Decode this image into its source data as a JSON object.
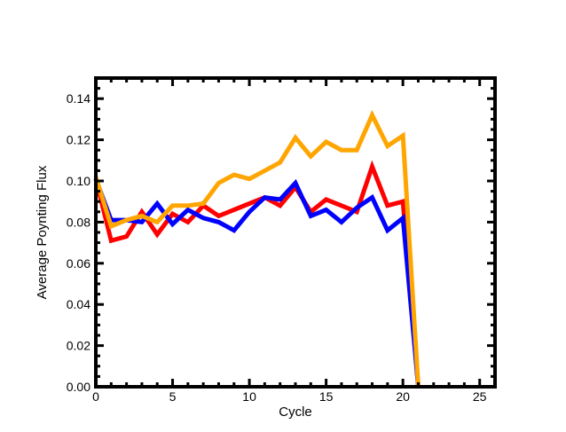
{
  "chart_data": {
    "type": "line",
    "xlabel": "Cycle",
    "ylabel": "Average Poynting Flux",
    "xlim": [
      0,
      26
    ],
    "ylim": [
      0,
      0.15
    ],
    "xticks": [
      0,
      5,
      10,
      15,
      20,
      25
    ],
    "xtick_labels": [
      "0",
      "5",
      "10",
      "15",
      "20",
      "25"
    ],
    "yticks": [
      0.0,
      0.02,
      0.04,
      0.06,
      0.08,
      0.1,
      0.12,
      0.14
    ],
    "ytick_labels": [
      "0.00",
      "0.02",
      "0.04",
      "0.06",
      "0.08",
      "0.10",
      "0.12",
      "0.14"
    ],
    "grid": false,
    "frame": "box",
    "series": [
      {
        "color": "#ff0000",
        "x": [
          0,
          1,
          2,
          3,
          4,
          5,
          6,
          7,
          8,
          9,
          10,
          11,
          12,
          13,
          14,
          15,
          16,
          17,
          18,
          19,
          20,
          21
        ],
        "values": [
          0.101,
          0.071,
          0.073,
          0.085,
          0.074,
          0.084,
          0.08,
          0.088,
          0.083,
          0.086,
          0.089,
          0.092,
          0.088,
          0.097,
          0.085,
          0.091,
          0.088,
          0.085,
          0.107,
          0.088,
          0.09,
          0.0
        ]
      },
      {
        "color": "#0000ff",
        "x": [
          0,
          1,
          2,
          3,
          4,
          5,
          6,
          7,
          8,
          9,
          10,
          11,
          12,
          13,
          14,
          15,
          16,
          17,
          18,
          19,
          20,
          21
        ],
        "values": [
          0.101,
          0.081,
          0.081,
          0.08,
          0.089,
          0.079,
          0.086,
          0.082,
          0.08,
          0.076,
          0.085,
          0.092,
          0.091,
          0.099,
          0.083,
          0.086,
          0.08,
          0.087,
          0.092,
          0.076,
          0.082,
          0.0
        ]
      },
      {
        "color": "#ffa500",
        "x": [
          0,
          1,
          2,
          3,
          4,
          5,
          6,
          7,
          8,
          9,
          10,
          11,
          12,
          13,
          14,
          15,
          16,
          17,
          18,
          19,
          20,
          21
        ],
        "values": [
          0.102,
          0.078,
          0.081,
          0.083,
          0.08,
          0.088,
          0.088,
          0.089,
          0.099,
          0.103,
          0.101,
          0.105,
          0.109,
          0.121,
          0.112,
          0.119,
          0.115,
          0.115,
          0.132,
          0.117,
          0.122,
          0.0
        ]
      }
    ]
  }
}
